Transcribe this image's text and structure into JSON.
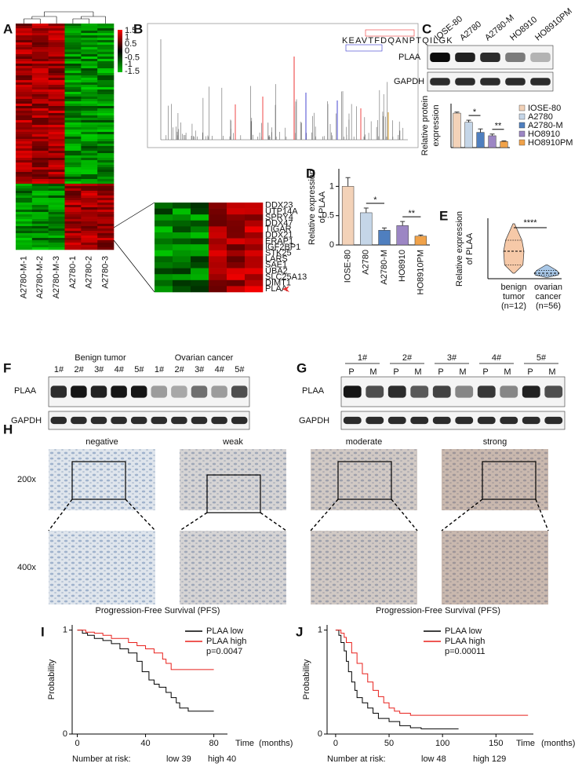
{
  "A": {
    "label": "A",
    "samples": [
      "A2780-M-1",
      "A2780-M-2",
      "A2780-M-3",
      "A2780-1",
      "A2780-2",
      "A2780-3"
    ],
    "scale_ticks": [
      1.5,
      1,
      0.5,
      0,
      -0.5,
      -1,
      -1.5
    ]
  },
  "B": {
    "label": "B",
    "sequence": "KEAVTFDQANPTQILGK",
    "genes": [
      "DDX23",
      "UTP14A",
      "SPRY4",
      "DDX47",
      "TIGAR",
      "DDX21",
      "ERAP1",
      "IGF2BP1",
      "STK25",
      "LARS",
      "SAE1",
      "UBA2",
      "SLC25A13",
      "DIMT1",
      "PLAA"
    ]
  },
  "C": {
    "label": "C",
    "lanes": [
      "IOSE-80",
      "A2780",
      "A2780-M",
      "HO8910",
      "HO8910PM"
    ],
    "proteins": [
      "PLAA",
      "GAPDH"
    ],
    "ylabel": [
      "Relative protein",
      "expression"
    ],
    "ylim": [
      0,
      1.3
    ],
    "values": [
      1.02,
      0.75,
      0.45,
      0.35,
      0.18
    ],
    "errors": [
      0.03,
      0.06,
      0.1,
      0.05,
      0.02
    ],
    "colors": [
      "#f3d2b8",
      "#c5d6e8",
      "#4f7fbf",
      "#9c86c4",
      "#f0a24a"
    ],
    "significance": [
      "*",
      "**"
    ]
  },
  "D": {
    "label": "D",
    "categories": [
      "IOSE-80",
      "A2780",
      "A2780-M",
      "HO8910",
      "HO8910PM"
    ],
    "ylabel": [
      "Relative expression",
      "of PLAA"
    ],
    "ylim": [
      0,
      1.3
    ],
    "yticks": [
      0,
      0.5,
      1
    ],
    "values": [
      1.0,
      0.55,
      0.25,
      0.33,
      0.15
    ],
    "errors": [
      0.15,
      0.08,
      0.04,
      0.07,
      0.02
    ],
    "colors": [
      "#f3d2b8",
      "#c5d6e8",
      "#4f7fbf",
      "#9c86c4",
      "#f0a24a"
    ],
    "significance": [
      "*",
      "**"
    ]
  },
  "E": {
    "label": "E",
    "ylabel": [
      "Relative expression",
      "of PLAA"
    ],
    "categories": [
      [
        "benign",
        "tumor",
        "(n=12)"
      ],
      [
        "ovarian",
        "cancer",
        "(n=56)"
      ]
    ],
    "ylim": [
      0,
      2.2
    ],
    "min": [
      0.2,
      0.05
    ],
    "q1": [
      0.5,
      0.13
    ],
    "median": [
      1.0,
      0.2
    ],
    "q3": [
      1.4,
      0.3
    ],
    "max": [
      2.0,
      0.5
    ],
    "colors": [
      "#f6c9a8",
      "#a9c8e8"
    ],
    "significance": "****"
  },
  "F": {
    "label": "F",
    "groups": [
      "Benign tumor",
      "Ovarian cancer"
    ],
    "lanes": [
      "1#",
      "2#",
      "3#",
      "4#",
      "5#",
      "1#",
      "2#",
      "3#",
      "4#",
      "5#"
    ],
    "proteins": [
      "PLAA",
      "GAPDH"
    ]
  },
  "G": {
    "label": "G",
    "patients": [
      "1#",
      "2#",
      "3#",
      "4#",
      "5#"
    ],
    "lanes": [
      "P",
      "M",
      "P",
      "M",
      "P",
      "M",
      "P",
      "M",
      "P",
      "M"
    ],
    "proteins": [
      "PLAA",
      "GAPDH"
    ]
  },
  "H": {
    "label": "H",
    "intensities": [
      "negative",
      "weak",
      "moderate",
      "strong"
    ],
    "magnifications": [
      "200x",
      "400x"
    ]
  },
  "I": {
    "label": "I",
    "title": "Progression-Free Survival (PFS)",
    "ylabel": "Probability",
    "xlabel": "Time",
    "xunit": "(months)",
    "xlim": [
      -3,
      88
    ],
    "xticks": [
      0,
      40,
      80
    ],
    "ylim": [
      0,
      1.05
    ],
    "yticks": [
      0,
      1
    ],
    "series": [
      {
        "name": "PLAA low",
        "color": "#000000",
        "x": [
          0,
          3,
          6,
          10,
          15,
          20,
          25,
          30,
          35,
          38,
          42,
          45,
          48,
          52,
          55,
          58,
          60,
          65,
          70,
          80
        ],
        "y": [
          1,
          0.97,
          0.95,
          0.92,
          0.9,
          0.87,
          0.82,
          0.78,
          0.7,
          0.6,
          0.52,
          0.48,
          0.45,
          0.4,
          0.35,
          0.3,
          0.25,
          0.22,
          0.22,
          0.22
        ]
      },
      {
        "name": "PLAA high",
        "color": "#e8201c",
        "x": [
          0,
          5,
          10,
          15,
          20,
          30,
          35,
          40,
          45,
          50,
          52,
          55,
          60,
          80
        ],
        "y": [
          1,
          0.98,
          0.97,
          0.95,
          0.92,
          0.88,
          0.85,
          0.82,
          0.78,
          0.72,
          0.68,
          0.62,
          0.62,
          0.62
        ]
      }
    ],
    "pvalue": "p=0.0047",
    "risk_label": "Number at risk:",
    "risk": [
      "low 39",
      "high 40"
    ]
  },
  "J": {
    "label": "J",
    "title": "Progression-Free Survival (PFS)",
    "ylabel": "Probability",
    "xlabel": "Time",
    "xunit": "(months)",
    "xlim": [
      -8,
      185
    ],
    "xticks": [
      0,
      50,
      100,
      150
    ],
    "ylim": [
      0,
      1.05
    ],
    "yticks": [
      0,
      1
    ],
    "series": [
      {
        "name": "PLAA low",
        "color": "#000000",
        "x": [
          0,
          3,
          5,
          8,
          10,
          12,
          15,
          18,
          20,
          25,
          30,
          35,
          40,
          50,
          60,
          70,
          80,
          100,
          115
        ],
        "y": [
          1,
          0.95,
          0.88,
          0.8,
          0.7,
          0.6,
          0.5,
          0.42,
          0.35,
          0.3,
          0.25,
          0.2,
          0.15,
          0.12,
          0.08,
          0.06,
          0.05,
          0.05,
          0.05
        ]
      },
      {
        "name": "PLAA high",
        "color": "#e8201c",
        "x": [
          0,
          5,
          8,
          10,
          15,
          20,
          25,
          30,
          35,
          40,
          45,
          50,
          55,
          60,
          70,
          180
        ],
        "y": [
          1,
          0.97,
          0.93,
          0.88,
          0.78,
          0.68,
          0.58,
          0.5,
          0.42,
          0.36,
          0.3,
          0.25,
          0.22,
          0.2,
          0.18,
          0.18
        ]
      }
    ],
    "pvalue": "p=0.00011",
    "risk_label": "Number at risk:",
    "risk": [
      "low 48",
      "high 129"
    ]
  }
}
